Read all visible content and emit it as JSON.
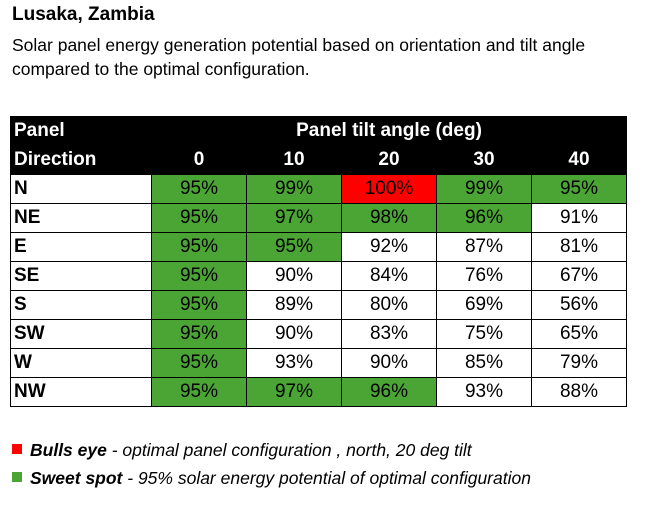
{
  "title": "Lusaka, Zambia",
  "subtitle": "Solar panel energy generation potential based on orientation and tilt angle compared to the optimal configuration.",
  "colors": {
    "sweet_spot": "#4aa535",
    "bulls_eye": "#ff0000",
    "header_bg": "#000000"
  },
  "chart_data": {
    "type": "table",
    "row_header_label_line1": "Panel",
    "row_header_label_line2": "Direction",
    "column_group_label": "Panel tilt angle (deg)",
    "columns": [
      "0",
      "10",
      "20",
      "30",
      "40"
    ],
    "rows": [
      {
        "direction": "N",
        "values": [
          "95%",
          "99%",
          "100%",
          "99%",
          "95%"
        ],
        "highlight": [
          "sweet",
          "sweet",
          "bulls",
          "sweet",
          "sweet"
        ]
      },
      {
        "direction": "NE",
        "values": [
          "95%",
          "97%",
          "98%",
          "96%",
          "91%"
        ],
        "highlight": [
          "sweet",
          "sweet",
          "sweet",
          "sweet",
          ""
        ]
      },
      {
        "direction": "E",
        "values": [
          "95%",
          "95%",
          "92%",
          "87%",
          "81%"
        ],
        "highlight": [
          "sweet",
          "sweet",
          "",
          "",
          ""
        ]
      },
      {
        "direction": "SE",
        "values": [
          "95%",
          "90%",
          "84%",
          "76%",
          "67%"
        ],
        "highlight": [
          "sweet",
          "",
          "",
          "",
          ""
        ]
      },
      {
        "direction": "S",
        "values": [
          "95%",
          "89%",
          "80%",
          "69%",
          "56%"
        ],
        "highlight": [
          "sweet",
          "",
          "",
          "",
          ""
        ]
      },
      {
        "direction": "SW",
        "values": [
          "95%",
          "90%",
          "83%",
          "75%",
          "65%"
        ],
        "highlight": [
          "sweet",
          "",
          "",
          "",
          ""
        ]
      },
      {
        "direction": "W",
        "values": [
          "95%",
          "93%",
          "90%",
          "85%",
          "79%"
        ],
        "highlight": [
          "sweet",
          "",
          "",
          "",
          ""
        ]
      },
      {
        "direction": "NW",
        "values": [
          "95%",
          "97%",
          "96%",
          "93%",
          "88%"
        ],
        "highlight": [
          "sweet",
          "sweet",
          "sweet",
          "",
          ""
        ]
      }
    ]
  },
  "legend": [
    {
      "key": "bulls",
      "name": "Bulls eye",
      "description": " - optimal panel configuration , north, 20 deg tilt"
    },
    {
      "key": "sweet",
      "name": "Sweet spot",
      "description": " - 95% solar energy potential of optimal configuration"
    }
  ]
}
